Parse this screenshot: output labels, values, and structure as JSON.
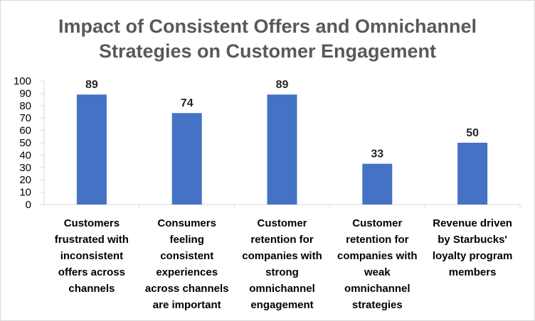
{
  "chart_data": {
    "type": "bar",
    "title_lines": [
      "Impact of Consistent Offers and Omnichannel",
      "Strategies on Customer Engagement"
    ],
    "categories": [
      [
        "Customers",
        "frustrated with",
        "inconsistent",
        "offers across",
        "channels"
      ],
      [
        "Consumers",
        "feeling",
        "consistent",
        "experiences",
        "across channels",
        "are important"
      ],
      [
        "Customer",
        "retention for",
        "companies with",
        "strong",
        "omnichannel",
        "engagement"
      ],
      [
        "Customer",
        "retention for",
        "companies with",
        "weak",
        "omnichannel",
        "strategies"
      ],
      [
        "Revenue driven",
        "by Starbucks'",
        "loyalty program",
        "members"
      ]
    ],
    "values": [
      89,
      74,
      89,
      33,
      50
    ],
    "data_labels": [
      "89",
      "74",
      "89",
      "33",
      "50"
    ],
    "y_ticks": [
      "0",
      "10",
      "20",
      "30",
      "40",
      "50",
      "60",
      "70",
      "80",
      "90",
      "100"
    ],
    "ylim": [
      0,
      100
    ],
    "xlabel": "",
    "ylabel": "",
    "grid": false,
    "bar_color": "#4472C4",
    "axis_color": "#d9d9d9"
  }
}
